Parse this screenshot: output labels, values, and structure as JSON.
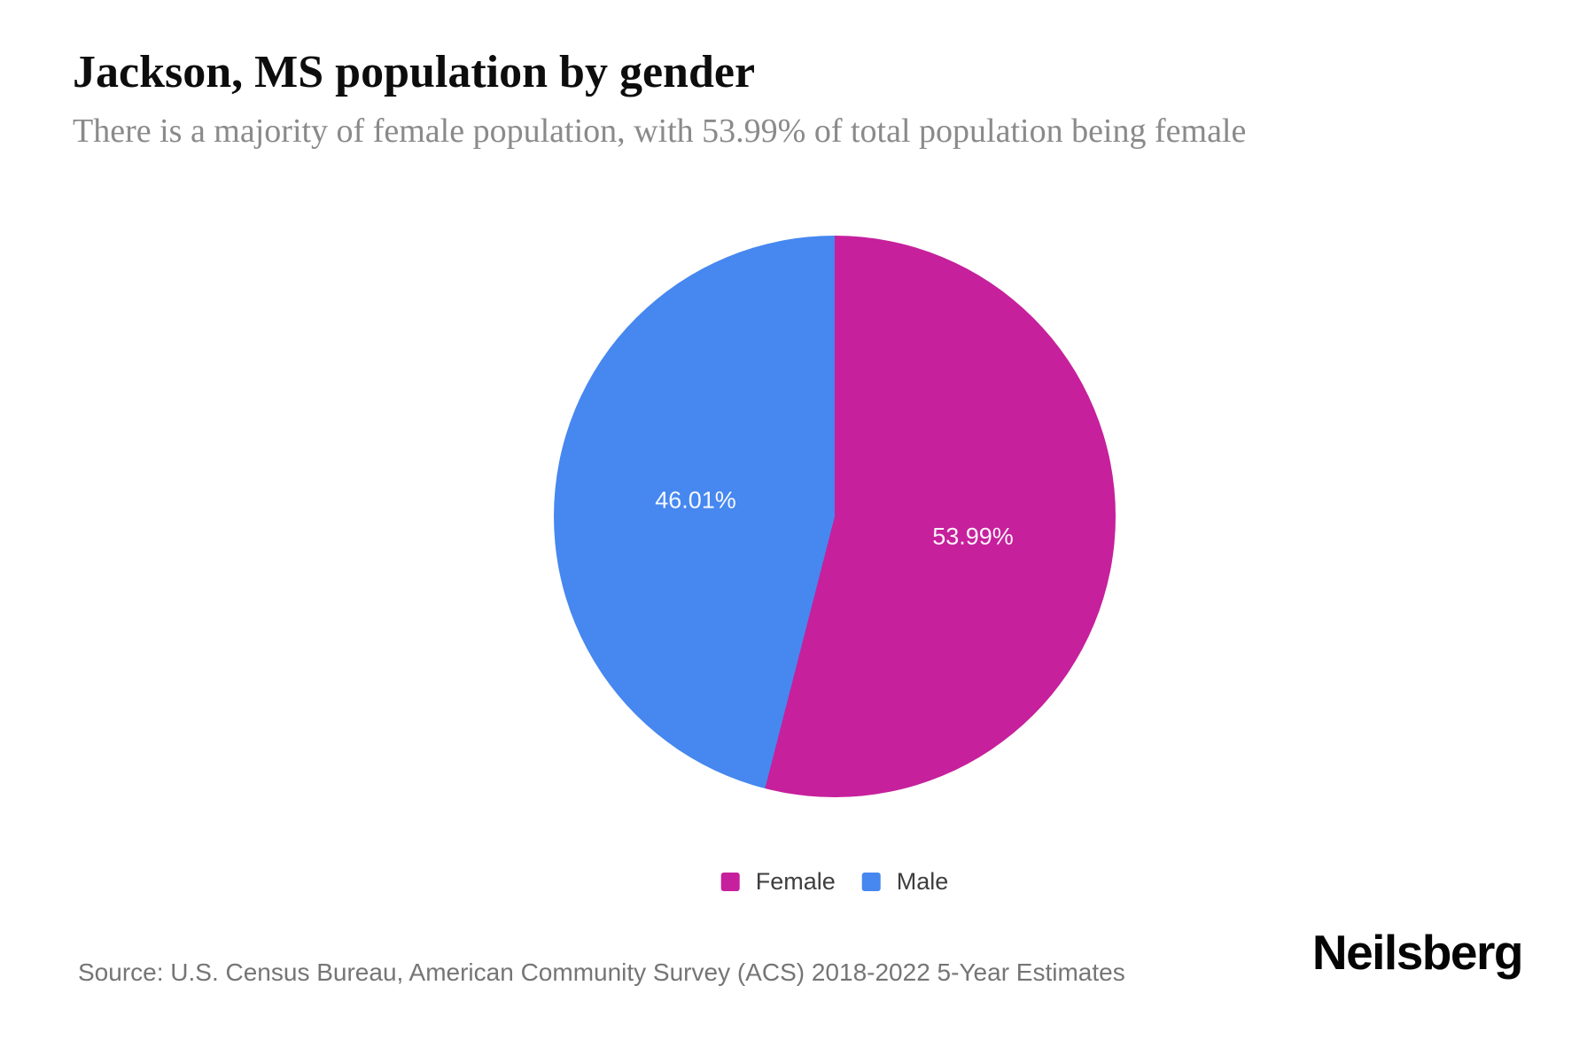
{
  "header": {
    "title": "Jackson, MS population by gender",
    "subtitle": "There is a majority of female population, with 53.99% of total population being female"
  },
  "chart_data": {
    "type": "pie",
    "title": "Jackson, MS population by gender",
    "subtitle": "There is a majority of female population, with 53.99% of total population being female",
    "start_angle_deg": 0,
    "direction": "clockwise",
    "legend_position": "bottom-center",
    "slices": [
      {
        "label": "Female",
        "value": 53.99,
        "display": "53.99%",
        "color": "#c6209c"
      },
      {
        "label": "Male",
        "value": 46.01,
        "display": "46.01%",
        "color": "#4687f0"
      }
    ]
  },
  "legend": {
    "items": [
      {
        "label": "Female",
        "color": "#c6209c"
      },
      {
        "label": "Male",
        "color": "#4687f0"
      }
    ]
  },
  "footer": {
    "source": "Source: U.S. Census Bureau, American Community Survey (ACS) 2018-2022 5-Year Estimates",
    "brand": "Neilsberg"
  }
}
